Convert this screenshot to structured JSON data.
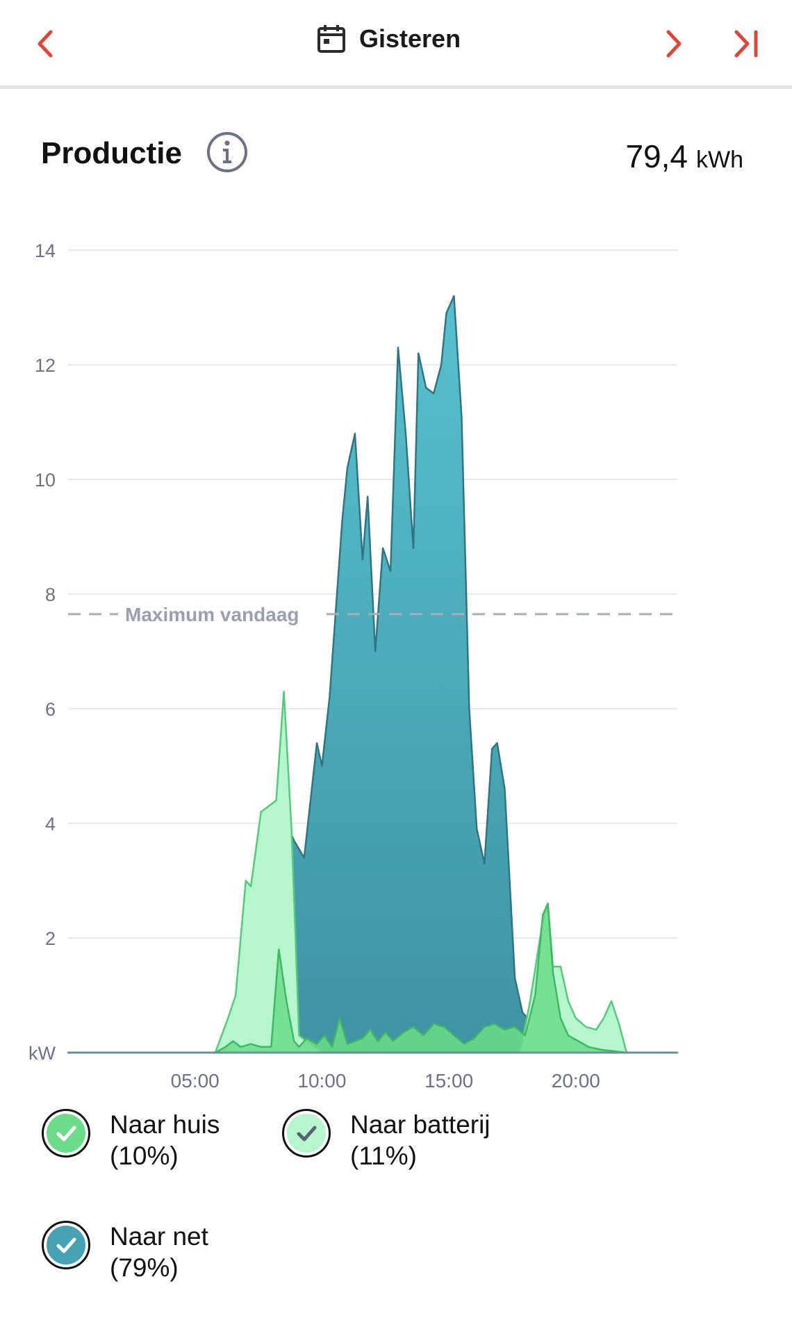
{
  "header": {
    "title": "Gisteren",
    "accent_color": "#d9483b"
  },
  "section": {
    "title": "Productie",
    "total_value": "79,4",
    "total_unit": "kWh"
  },
  "chart_data": {
    "type": "area",
    "ylabel": "kW",
    "ylim": [
      0,
      14
    ],
    "yticks": [
      2,
      4,
      6,
      8,
      10,
      12,
      14
    ],
    "xlim": [
      0,
      24
    ],
    "xticks": [
      {
        "value": 5,
        "label": "05:00"
      },
      {
        "value": 10,
        "label": "10:00"
      },
      {
        "value": 15,
        "label": "15:00"
      },
      {
        "value": 20,
        "label": "20:00"
      }
    ],
    "reference_line": {
      "value": 7.65,
      "label": "Maximum vandaag"
    },
    "series": [
      {
        "name": "Naar net",
        "color": "#47a3b3",
        "points": [
          [
            0,
            0
          ],
          [
            5.8,
            0
          ],
          [
            8.4,
            0
          ],
          [
            8.6,
            4.0
          ],
          [
            8.9,
            3.7
          ],
          [
            9.3,
            3.4
          ],
          [
            9.8,
            5.4
          ],
          [
            10.0,
            5.0
          ],
          [
            10.3,
            6.2
          ],
          [
            10.8,
            9.3
          ],
          [
            11.0,
            10.2
          ],
          [
            11.3,
            10.8
          ],
          [
            11.6,
            8.6
          ],
          [
            11.8,
            9.7
          ],
          [
            12.1,
            7.0
          ],
          [
            12.4,
            8.8
          ],
          [
            12.7,
            8.4
          ],
          [
            13.0,
            12.3
          ],
          [
            13.3,
            10.8
          ],
          [
            13.6,
            8.8
          ],
          [
            13.8,
            12.2
          ],
          [
            14.1,
            11.6
          ],
          [
            14.4,
            11.5
          ],
          [
            14.7,
            12.0
          ],
          [
            14.9,
            12.9
          ],
          [
            15.2,
            13.2
          ],
          [
            15.5,
            11.1
          ],
          [
            15.8,
            6.0
          ],
          [
            16.1,
            3.9
          ],
          [
            16.4,
            3.3
          ],
          [
            16.7,
            5.3
          ],
          [
            16.9,
            5.4
          ],
          [
            17.2,
            4.6
          ],
          [
            17.6,
            1.3
          ],
          [
            17.9,
            0.7
          ],
          [
            18.1,
            0.6
          ],
          [
            18.5,
            0.3
          ],
          [
            19.0,
            0
          ],
          [
            24,
            0
          ]
        ]
      },
      {
        "name": "Naar batterij",
        "color": "#b5f6cd",
        "points": [
          [
            0,
            0
          ],
          [
            5.8,
            0
          ],
          [
            6.3,
            0.6
          ],
          [
            6.6,
            1.0
          ],
          [
            7.0,
            3.0
          ],
          [
            7.2,
            2.9
          ],
          [
            7.6,
            4.2
          ],
          [
            7.9,
            4.3
          ],
          [
            8.2,
            4.4
          ],
          [
            8.5,
            6.3
          ],
          [
            8.8,
            3.9
          ],
          [
            9.1,
            0.3
          ],
          [
            10,
            0
          ],
          [
            17.8,
            0
          ],
          [
            18.2,
            0.9
          ],
          [
            18.7,
            2.3
          ],
          [
            18.9,
            2.6
          ],
          [
            19.1,
            1.5
          ],
          [
            19.4,
            1.5
          ],
          [
            19.7,
            0.9
          ],
          [
            20.0,
            0.6
          ],
          [
            20.4,
            0.45
          ],
          [
            20.8,
            0.4
          ],
          [
            21.1,
            0.6
          ],
          [
            21.4,
            0.9
          ],
          [
            21.7,
            0.5
          ],
          [
            22.0,
            0
          ],
          [
            24,
            0
          ]
        ]
      },
      {
        "name": "Naar huis",
        "color": "#6cdc8a",
        "points": [
          [
            0,
            0
          ],
          [
            5.8,
            0
          ],
          [
            6.2,
            0.1
          ],
          [
            6.5,
            0.2
          ],
          [
            6.8,
            0.1
          ],
          [
            7.2,
            0.15
          ],
          [
            7.6,
            0.1
          ],
          [
            8.0,
            0.1
          ],
          [
            8.3,
            1.8
          ],
          [
            8.6,
            0.9
          ],
          [
            8.9,
            0.2
          ],
          [
            9.1,
            0.1
          ],
          [
            9.4,
            0.25
          ],
          [
            9.8,
            0.15
          ],
          [
            10.1,
            0.3
          ],
          [
            10.4,
            0.1
          ],
          [
            10.7,
            0.6
          ],
          [
            11.0,
            0.15
          ],
          [
            11.3,
            0.2
          ],
          [
            11.6,
            0.25
          ],
          [
            11.9,
            0.4
          ],
          [
            12.2,
            0.2
          ],
          [
            12.5,
            0.35
          ],
          [
            12.8,
            0.2
          ],
          [
            13.2,
            0.35
          ],
          [
            13.6,
            0.45
          ],
          [
            14.0,
            0.3
          ],
          [
            14.4,
            0.5
          ],
          [
            14.8,
            0.45
          ],
          [
            15.2,
            0.3
          ],
          [
            15.6,
            0.15
          ],
          [
            16.0,
            0.25
          ],
          [
            16.4,
            0.45
          ],
          [
            16.8,
            0.5
          ],
          [
            17.2,
            0.4
          ],
          [
            17.6,
            0.45
          ],
          [
            18.0,
            0.3
          ],
          [
            18.4,
            1.0
          ],
          [
            18.7,
            2.4
          ],
          [
            18.9,
            2.6
          ],
          [
            19.1,
            1.4
          ],
          [
            19.4,
            0.6
          ],
          [
            19.7,
            0.3
          ],
          [
            20.1,
            0.2
          ],
          [
            20.5,
            0.1
          ],
          [
            21.0,
            0.05
          ],
          [
            22.0,
            0
          ],
          [
            24,
            0
          ]
        ]
      }
    ]
  },
  "legend": [
    {
      "name": "Naar huis",
      "pct": "(10%)",
      "color": "#6cdc8a",
      "check_color": "#ffffff"
    },
    {
      "name": "Naar batterij",
      "pct": "(11%)",
      "color": "#b5f6cd",
      "check_color": "#5b6275"
    },
    {
      "name": "Naar net",
      "pct": "(79%)",
      "color": "#47a3b3",
      "check_color": "#ffffff"
    }
  ]
}
